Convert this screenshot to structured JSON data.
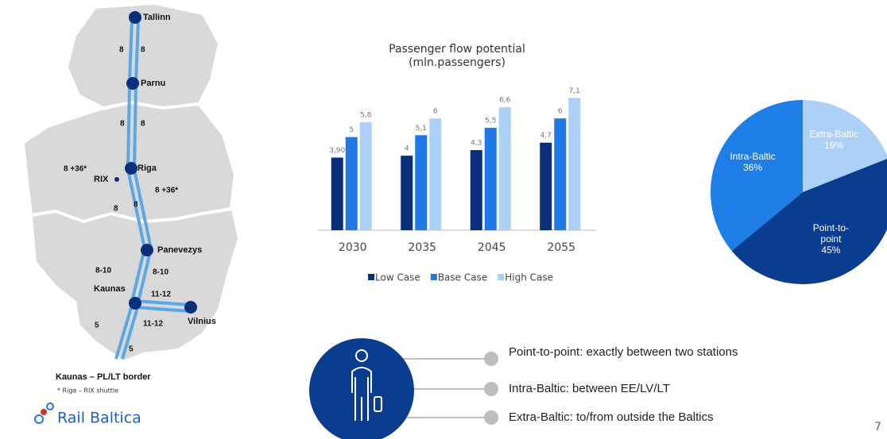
{
  "chart_data": [
    {
      "type": "bar",
      "title": "Passenger flow potential",
      "subtitle": "(mln.passengers)",
      "categories": [
        "2030",
        "2035",
        "2045",
        "2055"
      ],
      "series": [
        {
          "name": "Low Case",
          "color": "#0a2f7a",
          "values": [
            3.9,
            4,
            4.3,
            4.7
          ],
          "value_labels": [
            "3,90",
            "4",
            "4,3",
            "4,7"
          ]
        },
        {
          "name": "Base Case",
          "color": "#1f78e6",
          "values": [
            5,
            5.1,
            5.5,
            6
          ],
          "value_labels": [
            "5",
            "5,1",
            "5,5",
            "6"
          ]
        },
        {
          "name": "High Case",
          "color": "#add0f7",
          "values": [
            5.8,
            6,
            6.6,
            7.1
          ],
          "value_labels": [
            "5,8",
            "6",
            "6,6",
            "7,1"
          ]
        }
      ],
      "ylim": [
        0,
        7.5
      ],
      "legend": "bottom"
    },
    {
      "type": "pie",
      "categories": [
        "Extra-Baltic",
        "Point-to-point",
        "Intra-Baltic"
      ],
      "values": [
        19,
        45,
        36
      ],
      "value_labels": [
        "19%",
        "45%",
        "36%"
      ],
      "colors": [
        "#add0f7",
        "#0a3d8f",
        "#1f7de6"
      ]
    }
  ],
  "map": {
    "stations": [
      "Tallinn",
      "Parnu",
      "Riga",
      "RIX",
      "Panevezys",
      "Kaunas",
      "Vilnius"
    ],
    "segment_labels": [
      "8",
      "8",
      "8",
      "8",
      "8 +36*",
      "8 +36*",
      "8",
      "8",
      "8-10",
      "8-10",
      "11-12",
      "11-12",
      "5",
      "5"
    ],
    "caption": "Kaunas – PL/LT border",
    "footnote": "* Riga – RIX shuttle"
  },
  "logo": "Rail Baltica",
  "legend_items": [
    "Point-to-point: exactly between two stations",
    "Intra-Baltic: between EE/LV/LT",
    "Extra-Baltic: to/from outside the Baltics"
  ],
  "page_number": "7"
}
